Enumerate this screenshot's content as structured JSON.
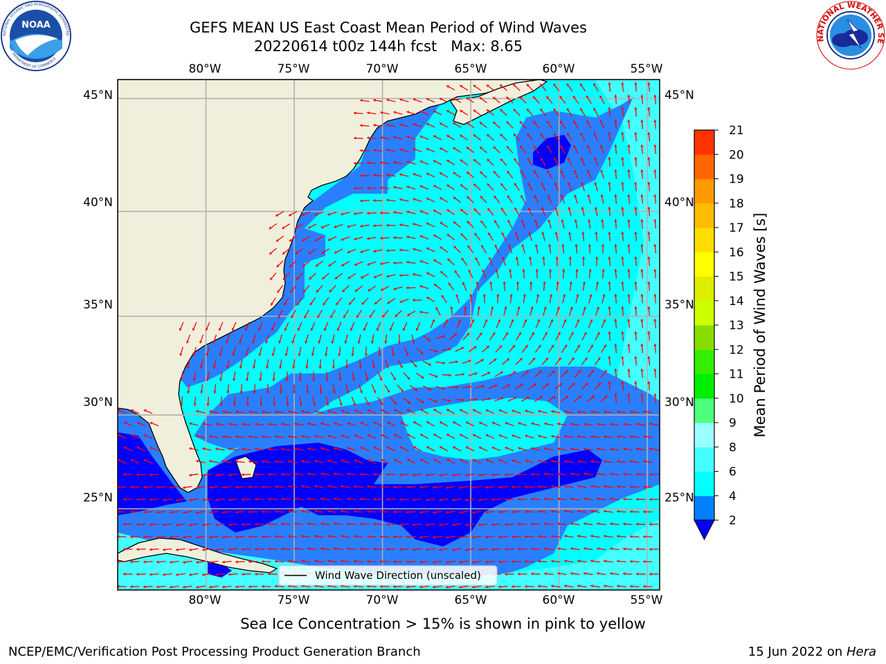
{
  "title": "GEFS MEAN US East Coast Mean Period of Wind Waves",
  "subtitle": "20220614 t00z 144h fcst   Max: 8.65",
  "noaa_logo": {
    "text": "NOAA",
    "ring_text": "NATIONAL OCEANIC AND ATMOSPHERIC ADMINISTRATION",
    "ring_text_bottom": "U.S. DEPARTMENT OF COMMERCE"
  },
  "nws_logo": {
    "ring_text": "NATIONAL WEATHER SERVICE"
  },
  "map": {
    "lon_labels": [
      "80°W",
      "75°W",
      "70°W",
      "65°W",
      "60°W",
      "55°W"
    ],
    "lat_labels": [
      "45°N",
      "40°N",
      "35°N",
      "30°N",
      "25°N"
    ],
    "lon_values": [
      -80,
      -75,
      -70,
      -65,
      -60,
      -55
    ],
    "lat_values": [
      45,
      40,
      35,
      30,
      25
    ],
    "extent": {
      "lon": [
        -85,
        -54.3
      ],
      "lat": [
        20.5,
        45.8
      ]
    },
    "legend_label": "Wind Wave Direction (unscaled)",
    "colors": {
      "land": "#efefdc",
      "ocean_low": "#2a7fff",
      "ocean_mid": "#00ffff",
      "ocean_high": "#44ffff",
      "ocean_deep": "#0000ff",
      "arrow": "#ff0000",
      "grid": "#b0b0b0"
    }
  },
  "colorbar": {
    "label": "Mean Period of Wind Waves [s]",
    "ticks": [
      "2",
      "4",
      "6",
      "8",
      "9",
      "10",
      "11",
      "12",
      "13",
      "14",
      "15",
      "16",
      "17",
      "18",
      "19",
      "20",
      "21"
    ],
    "colors": [
      "#0080ff",
      "#00ffff",
      "#44ffff",
      "#99ffff",
      "#4dff7d",
      "#00ee00",
      "#33ee00",
      "#88dd00",
      "#ccff00",
      "#ddee00",
      "#ffff00",
      "#ffdd00",
      "#ffbb00",
      "#ff9900",
      "#ff6600",
      "#ff3300"
    ],
    "under_color": "#0000ff"
  },
  "ice_note": "Sea Ice Concentration > 15% is shown in pink to yellow",
  "footer": {
    "left": "NCEP/EMC/Verification Post Processing Product Generation Branch",
    "right_date": "15 Jun 2022 on",
    "right_host": "Hera"
  }
}
